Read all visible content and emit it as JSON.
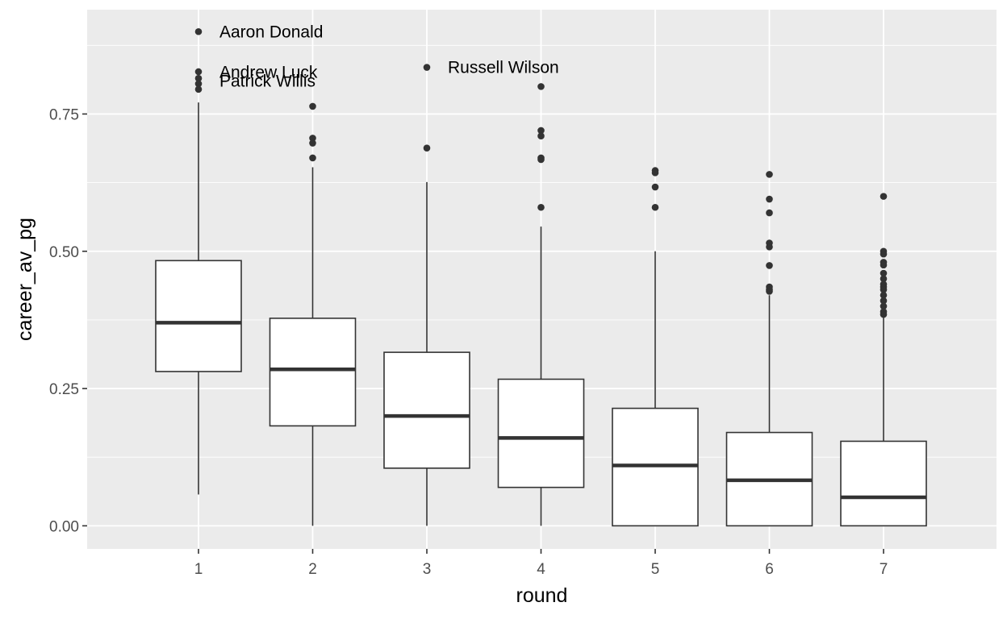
{
  "chart_data": {
    "type": "boxplot",
    "xlabel": "round",
    "ylabel": "career_av_pg",
    "ylim": [
      -0.042,
      0.94
    ],
    "yticks": [
      0.0,
      0.25,
      0.5,
      0.75
    ],
    "ytick_labels": [
      "0.00",
      "0.25",
      "0.50",
      "0.75"
    ],
    "grid": true,
    "colors": {
      "panel": "#ebebeb",
      "grid_major": "#ffffff",
      "box_fill": "#ffffff",
      "box_stroke": "#333333",
      "point": "#333333"
    },
    "categories": [
      "1",
      "2",
      "3",
      "4",
      "5",
      "6",
      "7"
    ],
    "boxes": [
      {
        "round": "1",
        "lower_whisker": 0.057,
        "q1": 0.281,
        "median": 0.37,
        "q3": 0.483,
        "upper_whisker": 0.771,
        "outliers": [
          0.9,
          0.827,
          0.815,
          0.805,
          0.795
        ]
      },
      {
        "round": "2",
        "lower_whisker": 0.0,
        "q1": 0.182,
        "median": 0.285,
        "q3": 0.378,
        "upper_whisker": 0.653,
        "outliers": [
          0.764,
          0.706,
          0.697,
          0.67
        ]
      },
      {
        "round": "3",
        "lower_whisker": 0.0,
        "q1": 0.105,
        "median": 0.2,
        "q3": 0.316,
        "upper_whisker": 0.626,
        "outliers": [
          0.835,
          0.688
        ]
      },
      {
        "round": "4",
        "lower_whisker": 0.0,
        "q1": 0.07,
        "median": 0.16,
        "q3": 0.267,
        "upper_whisker": 0.545,
        "outliers": [
          0.8,
          0.72,
          0.71,
          0.67,
          0.667,
          0.58
        ]
      },
      {
        "round": "5",
        "lower_whisker": 0.0,
        "q1": 0.0,
        "median": 0.11,
        "q3": 0.214,
        "upper_whisker": 0.5,
        "outliers": [
          0.647,
          0.643,
          0.617,
          0.58
        ]
      },
      {
        "round": "6",
        "lower_whisker": 0.0,
        "q1": 0.0,
        "median": 0.083,
        "q3": 0.17,
        "upper_whisker": 0.42,
        "outliers": [
          0.64,
          0.595,
          0.57,
          0.515,
          0.508,
          0.474,
          0.435,
          0.43,
          0.427
        ]
      },
      {
        "round": "7",
        "lower_whisker": 0.0,
        "q1": 0.0,
        "median": 0.052,
        "q3": 0.154,
        "upper_whisker": 0.38,
        "outliers": [
          0.6,
          0.5,
          0.495,
          0.48,
          0.475,
          0.46,
          0.45,
          0.44,
          0.435,
          0.43,
          0.42,
          0.41,
          0.4,
          0.39,
          0.385
        ]
      }
    ],
    "annotations": [
      {
        "text": "Aaron Donald",
        "round": "1",
        "y": 0.9
      },
      {
        "text": "Andrew Luck",
        "round": "1",
        "y": 0.826
      },
      {
        "text": "Patrick Willis",
        "round": "1",
        "y": 0.81
      },
      {
        "text": "Russell Wilson",
        "round": "3",
        "y": 0.835
      }
    ]
  }
}
